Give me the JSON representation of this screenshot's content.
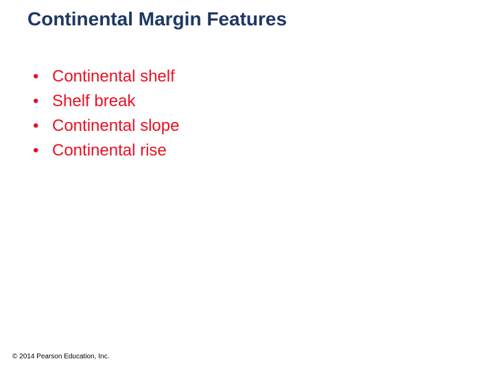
{
  "title": {
    "text": "Continental Margin Features",
    "color": "#1f3864",
    "fontsize": 28,
    "fontweight": "bold"
  },
  "bullets": {
    "items": [
      "Continental shelf",
      "Shelf break",
      "Continental slope",
      "Continental rise"
    ],
    "color": "#e81123",
    "fontsize": 24,
    "lineheight": 32,
    "bullet_char": "•"
  },
  "copyright": {
    "text": "© 2014 Pearson Education, Inc.",
    "color": "#000000",
    "fontsize": 10
  },
  "background_color": "#ffffff"
}
